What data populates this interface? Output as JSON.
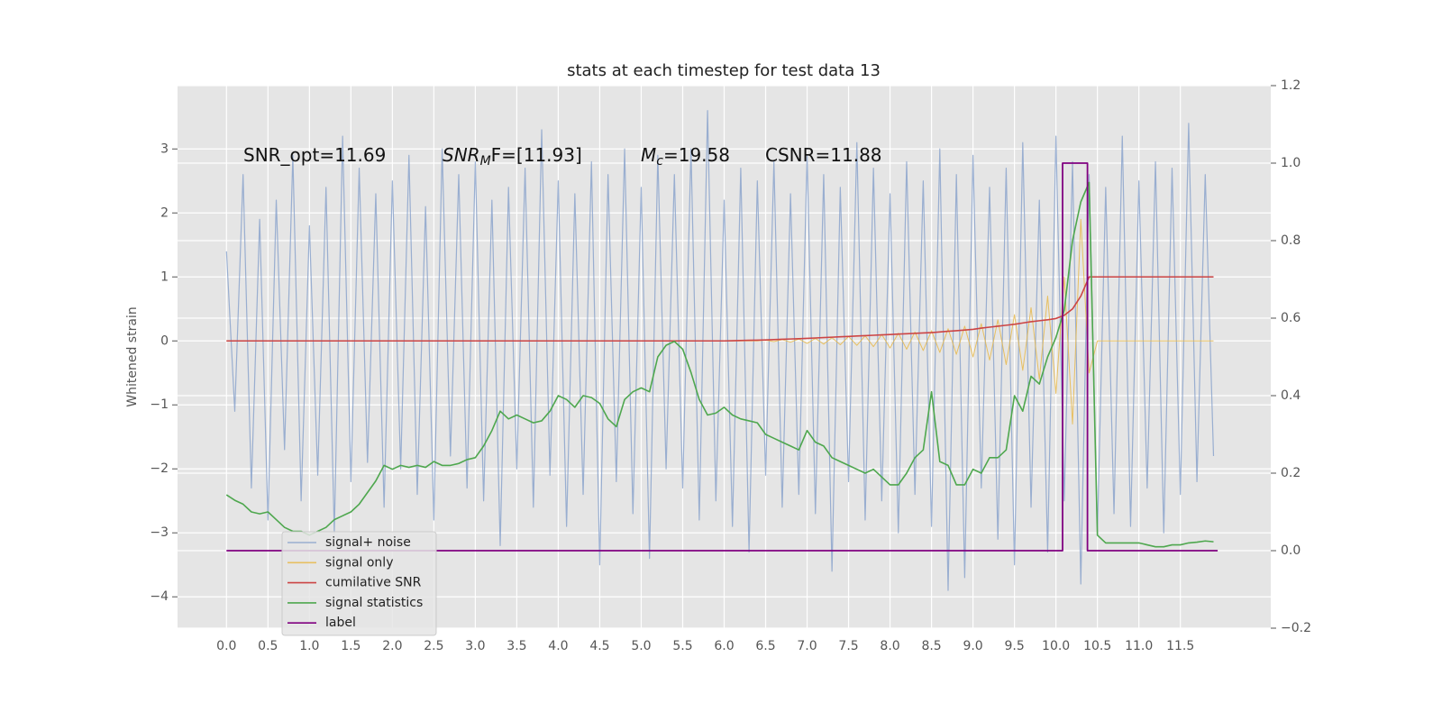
{
  "chart_data": {
    "type": "line",
    "title": "stats at each timestep for test data 13",
    "ylabel": "Whitened strain",
    "annotations": [
      {
        "base": "SNR_opt=11.69"
      },
      {
        "base": "SNR",
        "sub": "M",
        "rest": "F=[11.93]"
      },
      {
        "base": "M",
        "sub": "c",
        "rest": "=19.58"
      },
      {
        "base": "CSNR=11.88"
      }
    ],
    "xlim": [
      -0.59,
      12.59
    ],
    "ylim": [
      -4.49,
      3.99
    ],
    "y2lim": [
      -0.2,
      1.2
    ],
    "xticks": [
      {
        "value": 0,
        "label": "0.0"
      },
      0.5,
      {
        "value": 1,
        "label": "1.0"
      },
      1.5,
      {
        "value": 2,
        "label": "2.0"
      },
      2.5,
      {
        "value": 3,
        "label": "3.0"
      },
      3.5,
      {
        "value": 4,
        "label": "4.0"
      },
      4.5,
      {
        "value": 5,
        "label": "5.0"
      },
      5.5,
      {
        "value": 6,
        "label": "6.0"
      },
      6.5,
      {
        "value": 7,
        "label": "7.0"
      },
      7.5,
      {
        "value": 8,
        "label": "8.0"
      },
      8.5,
      {
        "value": 9,
        "label": "9.0"
      },
      9.5,
      {
        "value": 10,
        "label": "10.0"
      },
      10.5,
      {
        "value": 11,
        "label": "11.0"
      },
      11.5
    ],
    "yticks": [
      {
        "value": -4,
        "label": "−4"
      },
      {
        "value": -3,
        "label": "−3"
      },
      {
        "value": -2,
        "label": "−2"
      },
      {
        "value": -1,
        "label": "−1"
      },
      0,
      1,
      2,
      3
    ],
    "y2ticks": [
      {
        "value": -0.2,
        "label": "−0.2"
      },
      {
        "value": 0,
        "label": "0.0"
      },
      0.2,
      0.4,
      0.6,
      0.8,
      {
        "value": 1,
        "label": "1.0"
      },
      1.2
    ],
    "grid": true,
    "legend": "lower left",
    "x": [
      0,
      0.1,
      0.2,
      0.3,
      0.4,
      0.5,
      0.6,
      0.7,
      0.8,
      0.9,
      1,
      1.1,
      1.2,
      1.3,
      1.4,
      1.5,
      1.6,
      1.7,
      1.8,
      1.9,
      2,
      2.1,
      2.2,
      2.3,
      2.4,
      2.5,
      2.6,
      2.7,
      2.8,
      2.9,
      3,
      3.1,
      3.2,
      3.3,
      3.4,
      3.5,
      3.6,
      3.7,
      3.8,
      3.9,
      4,
      4.1,
      4.2,
      4.3,
      4.4,
      4.5,
      4.6,
      4.7,
      4.8,
      4.9,
      5,
      5.1,
      5.2,
      5.3,
      5.4,
      5.5,
      5.6,
      5.7,
      5.8,
      5.9,
      6,
      6.1,
      6.2,
      6.3,
      6.4,
      6.5,
      6.6,
      6.7,
      6.8,
      6.9,
      7,
      7.1,
      7.2,
      7.3,
      7.4,
      7.5,
      7.6,
      7.7,
      7.8,
      7.9,
      8,
      8.1,
      8.2,
      8.3,
      8.4,
      8.5,
      8.6,
      8.7,
      8.8,
      8.9,
      9,
      9.1,
      9.2,
      9.3,
      9.4,
      9.5,
      9.6,
      9.7,
      9.8,
      9.9,
      10,
      10.1,
      10.2,
      10.3,
      10.4,
      10.5,
      10.6,
      10.7,
      10.8,
      10.9,
      11,
      11.1,
      11.2,
      11.3,
      11.4,
      11.5,
      11.6,
      11.7,
      11.8,
      11.9
    ],
    "series": [
      {
        "name": "signal+ noise",
        "color": "#7f9bc8",
        "axis": "y",
        "values": [
          1.4,
          -1.1,
          2.6,
          -2.3,
          1.9,
          -2.8,
          2.2,
          -1.7,
          2.9,
          -2.5,
          1.8,
          -2.1,
          2.4,
          -3.0,
          3.2,
          -2.2,
          2.7,
          -1.9,
          2.3,
          -2.6,
          2.5,
          -2.0,
          2.9,
          -2.4,
          2.1,
          -2.8,
          3.0,
          -1.8,
          2.6,
          -2.3,
          2.8,
          -2.5,
          2.2,
          -3.2,
          2.4,
          -2.0,
          2.7,
          -2.6,
          3.3,
          -2.1,
          2.5,
          -2.9,
          2.3,
          -2.4,
          2.8,
          -3.5,
          2.6,
          -2.2,
          3.0,
          -2.7,
          2.4,
          -3.4,
          2.9,
          -2.0,
          2.6,
          -2.3,
          3.0,
          -2.8,
          3.6,
          -2.5,
          2.2,
          -2.9,
          2.7,
          -3.3,
          2.5,
          -2.1,
          2.8,
          -2.6,
          2.3,
          -2.4,
          2.9,
          -2.7,
          2.6,
          -3.6,
          2.4,
          -2.2,
          3.1,
          -2.8,
          2.7,
          -2.5,
          2.3,
          -3.0,
          2.8,
          -2.4,
          2.5,
          -2.9,
          3.0,
          -3.9,
          2.6,
          -3.7,
          2.9,
          -2.3,
          2.4,
          -3.1,
          2.7,
          -3.5,
          3.1,
          -2.6,
          2.2,
          -3.3,
          3.2,
          -2.5,
          2.8,
          -3.8,
          2.6,
          -3.0,
          2.4,
          -2.7,
          3.2,
          -2.9,
          2.5,
          -2.3,
          2.8,
          -3.0,
          2.7,
          -2.4,
          3.4,
          -2.2,
          2.6,
          -1.8
        ]
      },
      {
        "name": "signal only",
        "color": "#e8b84a",
        "axis": "y",
        "values": [
          0,
          0,
          0,
          0,
          0,
          0,
          0,
          0,
          0,
          0,
          0,
          0,
          0,
          0,
          0,
          0,
          0,
          0,
          0,
          0,
          0,
          0,
          0,
          0,
          0,
          0,
          0,
          0,
          0,
          0,
          0,
          0,
          0,
          0,
          0,
          0,
          0,
          0,
          0,
          0,
          0,
          0,
          0,
          0,
          0,
          0,
          0,
          0,
          0,
          0,
          0,
          0,
          0,
          0,
          0,
          0,
          0,
          0,
          0,
          0,
          0,
          0,
          0,
          0,
          0,
          0.01,
          -0.01,
          0.02,
          -0.02,
          0.03,
          -0.04,
          0.04,
          -0.05,
          0.05,
          -0.06,
          0.07,
          -0.07,
          0.08,
          -0.09,
          0.1,
          -0.11,
          0.12,
          -0.13,
          0.14,
          -0.15,
          0.16,
          -0.18,
          0.19,
          -0.21,
          0.23,
          -0.25,
          0.27,
          -0.3,
          0.33,
          -0.37,
          0.41,
          -0.46,
          0.52,
          -0.6,
          0.7,
          -0.82,
          1.0,
          -1.3,
          1.9,
          -0.5,
          0,
          0,
          0,
          0,
          0,
          0,
          0,
          0,
          0,
          0,
          0,
          0,
          0,
          0,
          0
        ]
      },
      {
        "name": "cumilative SNR",
        "color": "#cc4444",
        "axis": "y",
        "values": [
          0,
          0,
          0,
          0,
          0,
          0,
          0,
          0,
          0,
          0,
          0,
          0,
          0,
          0,
          0,
          0,
          0,
          0,
          0,
          0,
          0,
          0,
          0,
          0,
          0,
          0,
          0,
          0,
          0,
          0,
          0,
          0,
          0,
          0,
          0,
          0,
          0,
          0,
          0,
          0,
          0,
          0,
          0,
          0,
          0,
          0,
          0,
          0,
          0,
          0,
          0,
          0,
          0,
          0,
          0,
          0,
          0,
          0,
          0,
          0,
          0,
          0.003,
          0.006,
          0.009,
          0.012,
          0.015,
          0.02,
          0.025,
          0.03,
          0.035,
          0.04,
          0.046,
          0.052,
          0.058,
          0.064,
          0.07,
          0.076,
          0.082,
          0.088,
          0.094,
          0.1,
          0.106,
          0.112,
          0.118,
          0.124,
          0.13,
          0.14,
          0.15,
          0.16,
          0.17,
          0.18,
          0.2,
          0.215,
          0.23,
          0.245,
          0.26,
          0.28,
          0.3,
          0.315,
          0.33,
          0.35,
          0.4,
          0.5,
          0.7,
          1.0,
          1.0,
          1.0,
          1.0,
          1.0,
          1.0,
          1.0,
          1.0,
          1.0,
          1.0,
          1.0,
          1.0,
          1.0,
          1.0,
          1.0,
          1.0
        ]
      },
      {
        "name": "signal statistics",
        "color": "#4ea74e",
        "axis": "y2",
        "values": [
          0.144,
          0.13,
          0.12,
          0.1,
          0.095,
          0.1,
          0.08,
          0.06,
          0.05,
          0.05,
          0.04,
          0.05,
          0.06,
          0.08,
          0.09,
          0.1,
          0.12,
          0.15,
          0.18,
          0.22,
          0.21,
          0.22,
          0.215,
          0.22,
          0.215,
          0.23,
          0.22,
          0.22,
          0.225,
          0.235,
          0.24,
          0.27,
          0.31,
          0.36,
          0.34,
          0.35,
          0.34,
          0.33,
          0.335,
          0.36,
          0.4,
          0.39,
          0.37,
          0.4,
          0.395,
          0.38,
          0.34,
          0.32,
          0.39,
          0.41,
          0.42,
          0.41,
          0.5,
          0.53,
          0.54,
          0.52,
          0.46,
          0.39,
          0.35,
          0.355,
          0.37,
          0.35,
          0.34,
          0.335,
          0.33,
          0.3,
          0.29,
          0.28,
          0.27,
          0.26,
          0.31,
          0.28,
          0.27,
          0.24,
          0.23,
          0.22,
          0.21,
          0.2,
          0.21,
          0.19,
          0.17,
          0.17,
          0.2,
          0.24,
          0.26,
          0.41,
          0.23,
          0.22,
          0.17,
          0.17,
          0.21,
          0.2,
          0.24,
          0.24,
          0.26,
          0.4,
          0.36,
          0.45,
          0.43,
          0.5,
          0.55,
          0.62,
          0.8,
          0.9,
          0.95,
          0.04,
          0.02,
          0.02,
          0.02,
          0.02,
          0.02,
          0.015,
          0.01,
          0.01,
          0.015,
          0.015,
          0.02,
          0.022,
          0.025,
          0.023
        ]
      },
      {
        "name": "label",
        "color": "#800080",
        "axis": "y2",
        "x": [
          0,
          10.08,
          10.08,
          10.38,
          10.38,
          11.95
        ],
        "values": [
          0,
          0,
          1,
          1,
          0,
          0
        ]
      }
    ]
  }
}
